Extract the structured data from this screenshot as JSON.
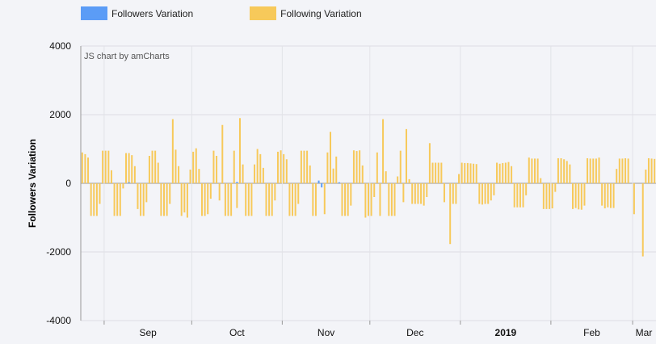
{
  "legend": {
    "items": [
      {
        "label": "Followers Variation",
        "color": "#5b9cf6"
      },
      {
        "label": "Following Variation",
        "color": "#f7c95a"
      }
    ]
  },
  "watermark": "JS chart by amCharts",
  "chart_data": {
    "type": "bar",
    "ylabel": "Followers Variation",
    "ylim": [
      -4000,
      4000
    ],
    "yticks": [
      -4000,
      -2000,
      0,
      2000,
      4000
    ],
    "grid": true,
    "legend_position": "top-left",
    "x_start": "2018-08-24",
    "x_end": "2019-03-09",
    "xtick_labels": [
      {
        "date": "2018-09-01",
        "label": "Sep",
        "bold": false
      },
      {
        "date": "2018-10-01",
        "label": "Oct",
        "bold": false
      },
      {
        "date": "2018-11-01",
        "label": "Nov",
        "bold": false
      },
      {
        "date": "2018-12-01",
        "label": "Dec",
        "bold": false
      },
      {
        "date": "2019-01-01",
        "label": "2019",
        "bold": true
      },
      {
        "date": "2019-02-01",
        "label": "Feb",
        "bold": false
      },
      {
        "date": "2019-03-01",
        "label": "Mar",
        "bold": false
      }
    ],
    "series": [
      {
        "name": "Followers Variation",
        "color": "#5b9cf6",
        "values": [
          {
            "date": "2018-11-13",
            "value": 80
          },
          {
            "date": "2018-11-14",
            "value": -120
          },
          {
            "date": "2018-09-09",
            "value": 30
          },
          {
            "date": "2018-10-16",
            "value": 40
          },
          {
            "date": "2018-11-20",
            "value": 30
          }
        ]
      },
      {
        "name": "Following Variation",
        "color": "#f7c95a",
        "values": [
          {
            "date": "2018-08-24",
            "value": 900
          },
          {
            "date": "2018-08-25",
            "value": 850
          },
          {
            "date": "2018-08-26",
            "value": 750
          },
          {
            "date": "2018-08-27",
            "value": -950
          },
          {
            "date": "2018-08-28",
            "value": -950
          },
          {
            "date": "2018-08-29",
            "value": -950
          },
          {
            "date": "2018-08-30",
            "value": -600
          },
          {
            "date": "2018-08-31",
            "value": 950
          },
          {
            "date": "2018-09-01",
            "value": 950
          },
          {
            "date": "2018-09-02",
            "value": 950
          },
          {
            "date": "2018-09-03",
            "value": 380
          },
          {
            "date": "2018-09-04",
            "value": -950
          },
          {
            "date": "2018-09-05",
            "value": -950
          },
          {
            "date": "2018-09-06",
            "value": -950
          },
          {
            "date": "2018-09-07",
            "value": -150
          },
          {
            "date": "2018-09-08",
            "value": 880
          },
          {
            "date": "2018-09-09",
            "value": 880
          },
          {
            "date": "2018-09-10",
            "value": 820
          },
          {
            "date": "2018-09-11",
            "value": 500
          },
          {
            "date": "2018-09-12",
            "value": -750
          },
          {
            "date": "2018-09-13",
            "value": -950
          },
          {
            "date": "2018-09-14",
            "value": -950
          },
          {
            "date": "2018-09-15",
            "value": -550
          },
          {
            "date": "2018-09-16",
            "value": 800
          },
          {
            "date": "2018-09-17",
            "value": 950
          },
          {
            "date": "2018-09-18",
            "value": 950
          },
          {
            "date": "2018-09-19",
            "value": 600
          },
          {
            "date": "2018-09-20",
            "value": -950
          },
          {
            "date": "2018-09-21",
            "value": -950
          },
          {
            "date": "2018-09-22",
            "value": -950
          },
          {
            "date": "2018-09-23",
            "value": -600
          },
          {
            "date": "2018-09-24",
            "value": 1870
          },
          {
            "date": "2018-09-25",
            "value": 980
          },
          {
            "date": "2018-09-26",
            "value": 500
          },
          {
            "date": "2018-09-27",
            "value": -950
          },
          {
            "date": "2018-09-28",
            "value": -850
          },
          {
            "date": "2018-09-29",
            "value": -1000
          },
          {
            "date": "2018-09-30",
            "value": 400
          },
          {
            "date": "2018-10-01",
            "value": 920
          },
          {
            "date": "2018-10-02",
            "value": 1020
          },
          {
            "date": "2018-10-03",
            "value": 420
          },
          {
            "date": "2018-10-04",
            "value": -950
          },
          {
            "date": "2018-10-05",
            "value": -950
          },
          {
            "date": "2018-10-06",
            "value": -900
          },
          {
            "date": "2018-10-07",
            "value": -450
          },
          {
            "date": "2018-10-08",
            "value": 950
          },
          {
            "date": "2018-10-09",
            "value": 800
          },
          {
            "date": "2018-10-10",
            "value": -500
          },
          {
            "date": "2018-10-11",
            "value": 1700
          },
          {
            "date": "2018-10-12",
            "value": -950
          },
          {
            "date": "2018-10-13",
            "value": -950
          },
          {
            "date": "2018-10-14",
            "value": -950
          },
          {
            "date": "2018-10-15",
            "value": 950
          },
          {
            "date": "2018-10-16",
            "value": -720
          },
          {
            "date": "2018-10-17",
            "value": 1900
          },
          {
            "date": "2018-10-18",
            "value": 550
          },
          {
            "date": "2018-10-19",
            "value": -950
          },
          {
            "date": "2018-10-20",
            "value": -950
          },
          {
            "date": "2018-10-21",
            "value": -950
          },
          {
            "date": "2018-10-22",
            "value": 550
          },
          {
            "date": "2018-10-23",
            "value": 1000
          },
          {
            "date": "2018-10-24",
            "value": 850
          },
          {
            "date": "2018-10-25",
            "value": 450
          },
          {
            "date": "2018-10-26",
            "value": -950
          },
          {
            "date": "2018-10-27",
            "value": -950
          },
          {
            "date": "2018-10-28",
            "value": -950
          },
          {
            "date": "2018-10-29",
            "value": -500
          },
          {
            "date": "2018-10-30",
            "value": 920
          },
          {
            "date": "2018-10-31",
            "value": 960
          },
          {
            "date": "2018-11-01",
            "value": 850
          },
          {
            "date": "2018-11-02",
            "value": 700
          },
          {
            "date": "2018-11-03",
            "value": -950
          },
          {
            "date": "2018-11-04",
            "value": -950
          },
          {
            "date": "2018-11-05",
            "value": -950
          },
          {
            "date": "2018-11-06",
            "value": -600
          },
          {
            "date": "2018-11-07",
            "value": 950
          },
          {
            "date": "2018-11-08",
            "value": 950
          },
          {
            "date": "2018-11-09",
            "value": 950
          },
          {
            "date": "2018-11-10",
            "value": 520
          },
          {
            "date": "2018-11-11",
            "value": -950
          },
          {
            "date": "2018-11-12",
            "value": -950
          },
          {
            "date": "2018-11-15",
            "value": -900
          },
          {
            "date": "2018-11-16",
            "value": 900
          },
          {
            "date": "2018-11-17",
            "value": 1500
          },
          {
            "date": "2018-11-18",
            "value": 430
          },
          {
            "date": "2018-11-19",
            "value": 780
          },
          {
            "date": "2018-11-21",
            "value": -950
          },
          {
            "date": "2018-11-22",
            "value": -950
          },
          {
            "date": "2018-11-23",
            "value": -950
          },
          {
            "date": "2018-11-24",
            "value": -650
          },
          {
            "date": "2018-11-25",
            "value": 960
          },
          {
            "date": "2018-11-26",
            "value": 940
          },
          {
            "date": "2018-11-27",
            "value": 960
          },
          {
            "date": "2018-11-28",
            "value": 520
          },
          {
            "date": "2018-11-29",
            "value": -1000
          },
          {
            "date": "2018-11-30",
            "value": -950
          },
          {
            "date": "2018-12-01",
            "value": -950
          },
          {
            "date": "2018-12-02",
            "value": -400
          },
          {
            "date": "2018-12-03",
            "value": 900
          },
          {
            "date": "2018-12-04",
            "value": -950
          },
          {
            "date": "2018-12-05",
            "value": 1870
          },
          {
            "date": "2018-12-06",
            "value": 350
          },
          {
            "date": "2018-12-07",
            "value": -950
          },
          {
            "date": "2018-12-08",
            "value": -950
          },
          {
            "date": "2018-12-09",
            "value": -950
          },
          {
            "date": "2018-12-10",
            "value": 200
          },
          {
            "date": "2018-12-11",
            "value": 950
          },
          {
            "date": "2018-12-12",
            "value": -550
          },
          {
            "date": "2018-12-13",
            "value": 1580
          },
          {
            "date": "2018-12-14",
            "value": 120
          },
          {
            "date": "2018-12-15",
            "value": -600
          },
          {
            "date": "2018-12-16",
            "value": -600
          },
          {
            "date": "2018-12-17",
            "value": -600
          },
          {
            "date": "2018-12-18",
            "value": -600
          },
          {
            "date": "2018-12-19",
            "value": -650
          },
          {
            "date": "2018-12-20",
            "value": -400
          },
          {
            "date": "2018-12-21",
            "value": 1170
          },
          {
            "date": "2018-12-22",
            "value": 600
          },
          {
            "date": "2018-12-23",
            "value": 600
          },
          {
            "date": "2018-12-24",
            "value": 600
          },
          {
            "date": "2018-12-25",
            "value": 600
          },
          {
            "date": "2018-12-26",
            "value": -550
          },
          {
            "date": "2018-12-28",
            "value": -1770
          },
          {
            "date": "2018-12-29",
            "value": -600
          },
          {
            "date": "2018-12-30",
            "value": -600
          },
          {
            "date": "2018-12-31",
            "value": 270
          },
          {
            "date": "2019-01-01",
            "value": 600
          },
          {
            "date": "2019-01-02",
            "value": 590
          },
          {
            "date": "2019-01-03",
            "value": 590
          },
          {
            "date": "2019-01-04",
            "value": 580
          },
          {
            "date": "2019-01-05",
            "value": 570
          },
          {
            "date": "2019-01-06",
            "value": 560
          },
          {
            "date": "2019-01-07",
            "value": -600
          },
          {
            "date": "2019-01-08",
            "value": -620
          },
          {
            "date": "2019-01-09",
            "value": -600
          },
          {
            "date": "2019-01-10",
            "value": -600
          },
          {
            "date": "2019-01-11",
            "value": -500
          },
          {
            "date": "2019-01-12",
            "value": -350
          },
          {
            "date": "2019-01-13",
            "value": 600
          },
          {
            "date": "2019-01-14",
            "value": 570
          },
          {
            "date": "2019-01-15",
            "value": 590
          },
          {
            "date": "2019-01-16",
            "value": 600
          },
          {
            "date": "2019-01-17",
            "value": 620
          },
          {
            "date": "2019-01-18",
            "value": 500
          },
          {
            "date": "2019-01-19",
            "value": -700
          },
          {
            "date": "2019-01-20",
            "value": -700
          },
          {
            "date": "2019-01-21",
            "value": -700
          },
          {
            "date": "2019-01-22",
            "value": -700
          },
          {
            "date": "2019-01-23",
            "value": -350
          },
          {
            "date": "2019-01-24",
            "value": 750
          },
          {
            "date": "2019-01-25",
            "value": 720
          },
          {
            "date": "2019-01-26",
            "value": 720
          },
          {
            "date": "2019-01-27",
            "value": 720
          },
          {
            "date": "2019-01-28",
            "value": 150
          },
          {
            "date": "2019-01-29",
            "value": -750
          },
          {
            "date": "2019-01-30",
            "value": -750
          },
          {
            "date": "2019-01-31",
            "value": -750
          },
          {
            "date": "2019-02-01",
            "value": -730
          },
          {
            "date": "2019-02-02",
            "value": -250
          },
          {
            "date": "2019-02-03",
            "value": 730
          },
          {
            "date": "2019-02-04",
            "value": 730
          },
          {
            "date": "2019-02-05",
            "value": 700
          },
          {
            "date": "2019-02-06",
            "value": 650
          },
          {
            "date": "2019-02-07",
            "value": 550
          },
          {
            "date": "2019-02-08",
            "value": -750
          },
          {
            "date": "2019-02-09",
            "value": -720
          },
          {
            "date": "2019-02-10",
            "value": -760
          },
          {
            "date": "2019-02-11",
            "value": -770
          },
          {
            "date": "2019-02-12",
            "value": -650
          },
          {
            "date": "2019-02-13",
            "value": 730
          },
          {
            "date": "2019-02-14",
            "value": 720
          },
          {
            "date": "2019-02-15",
            "value": 720
          },
          {
            "date": "2019-02-16",
            "value": 720
          },
          {
            "date": "2019-02-17",
            "value": 750
          },
          {
            "date": "2019-02-18",
            "value": -650
          },
          {
            "date": "2019-02-19",
            "value": -730
          },
          {
            "date": "2019-02-20",
            "value": -700
          },
          {
            "date": "2019-02-21",
            "value": -720
          },
          {
            "date": "2019-02-22",
            "value": -720
          },
          {
            "date": "2019-02-23",
            "value": 420
          },
          {
            "date": "2019-02-24",
            "value": 720
          },
          {
            "date": "2019-02-25",
            "value": 720
          },
          {
            "date": "2019-02-26",
            "value": 730
          },
          {
            "date": "2019-02-27",
            "value": 720
          },
          {
            "date": "2019-03-01",
            "value": -900
          },
          {
            "date": "2019-03-04",
            "value": -2130
          },
          {
            "date": "2019-03-05",
            "value": 400
          },
          {
            "date": "2019-03-06",
            "value": 730
          },
          {
            "date": "2019-03-07",
            "value": 720
          },
          {
            "date": "2019-03-08",
            "value": 710
          }
        ]
      }
    ]
  }
}
